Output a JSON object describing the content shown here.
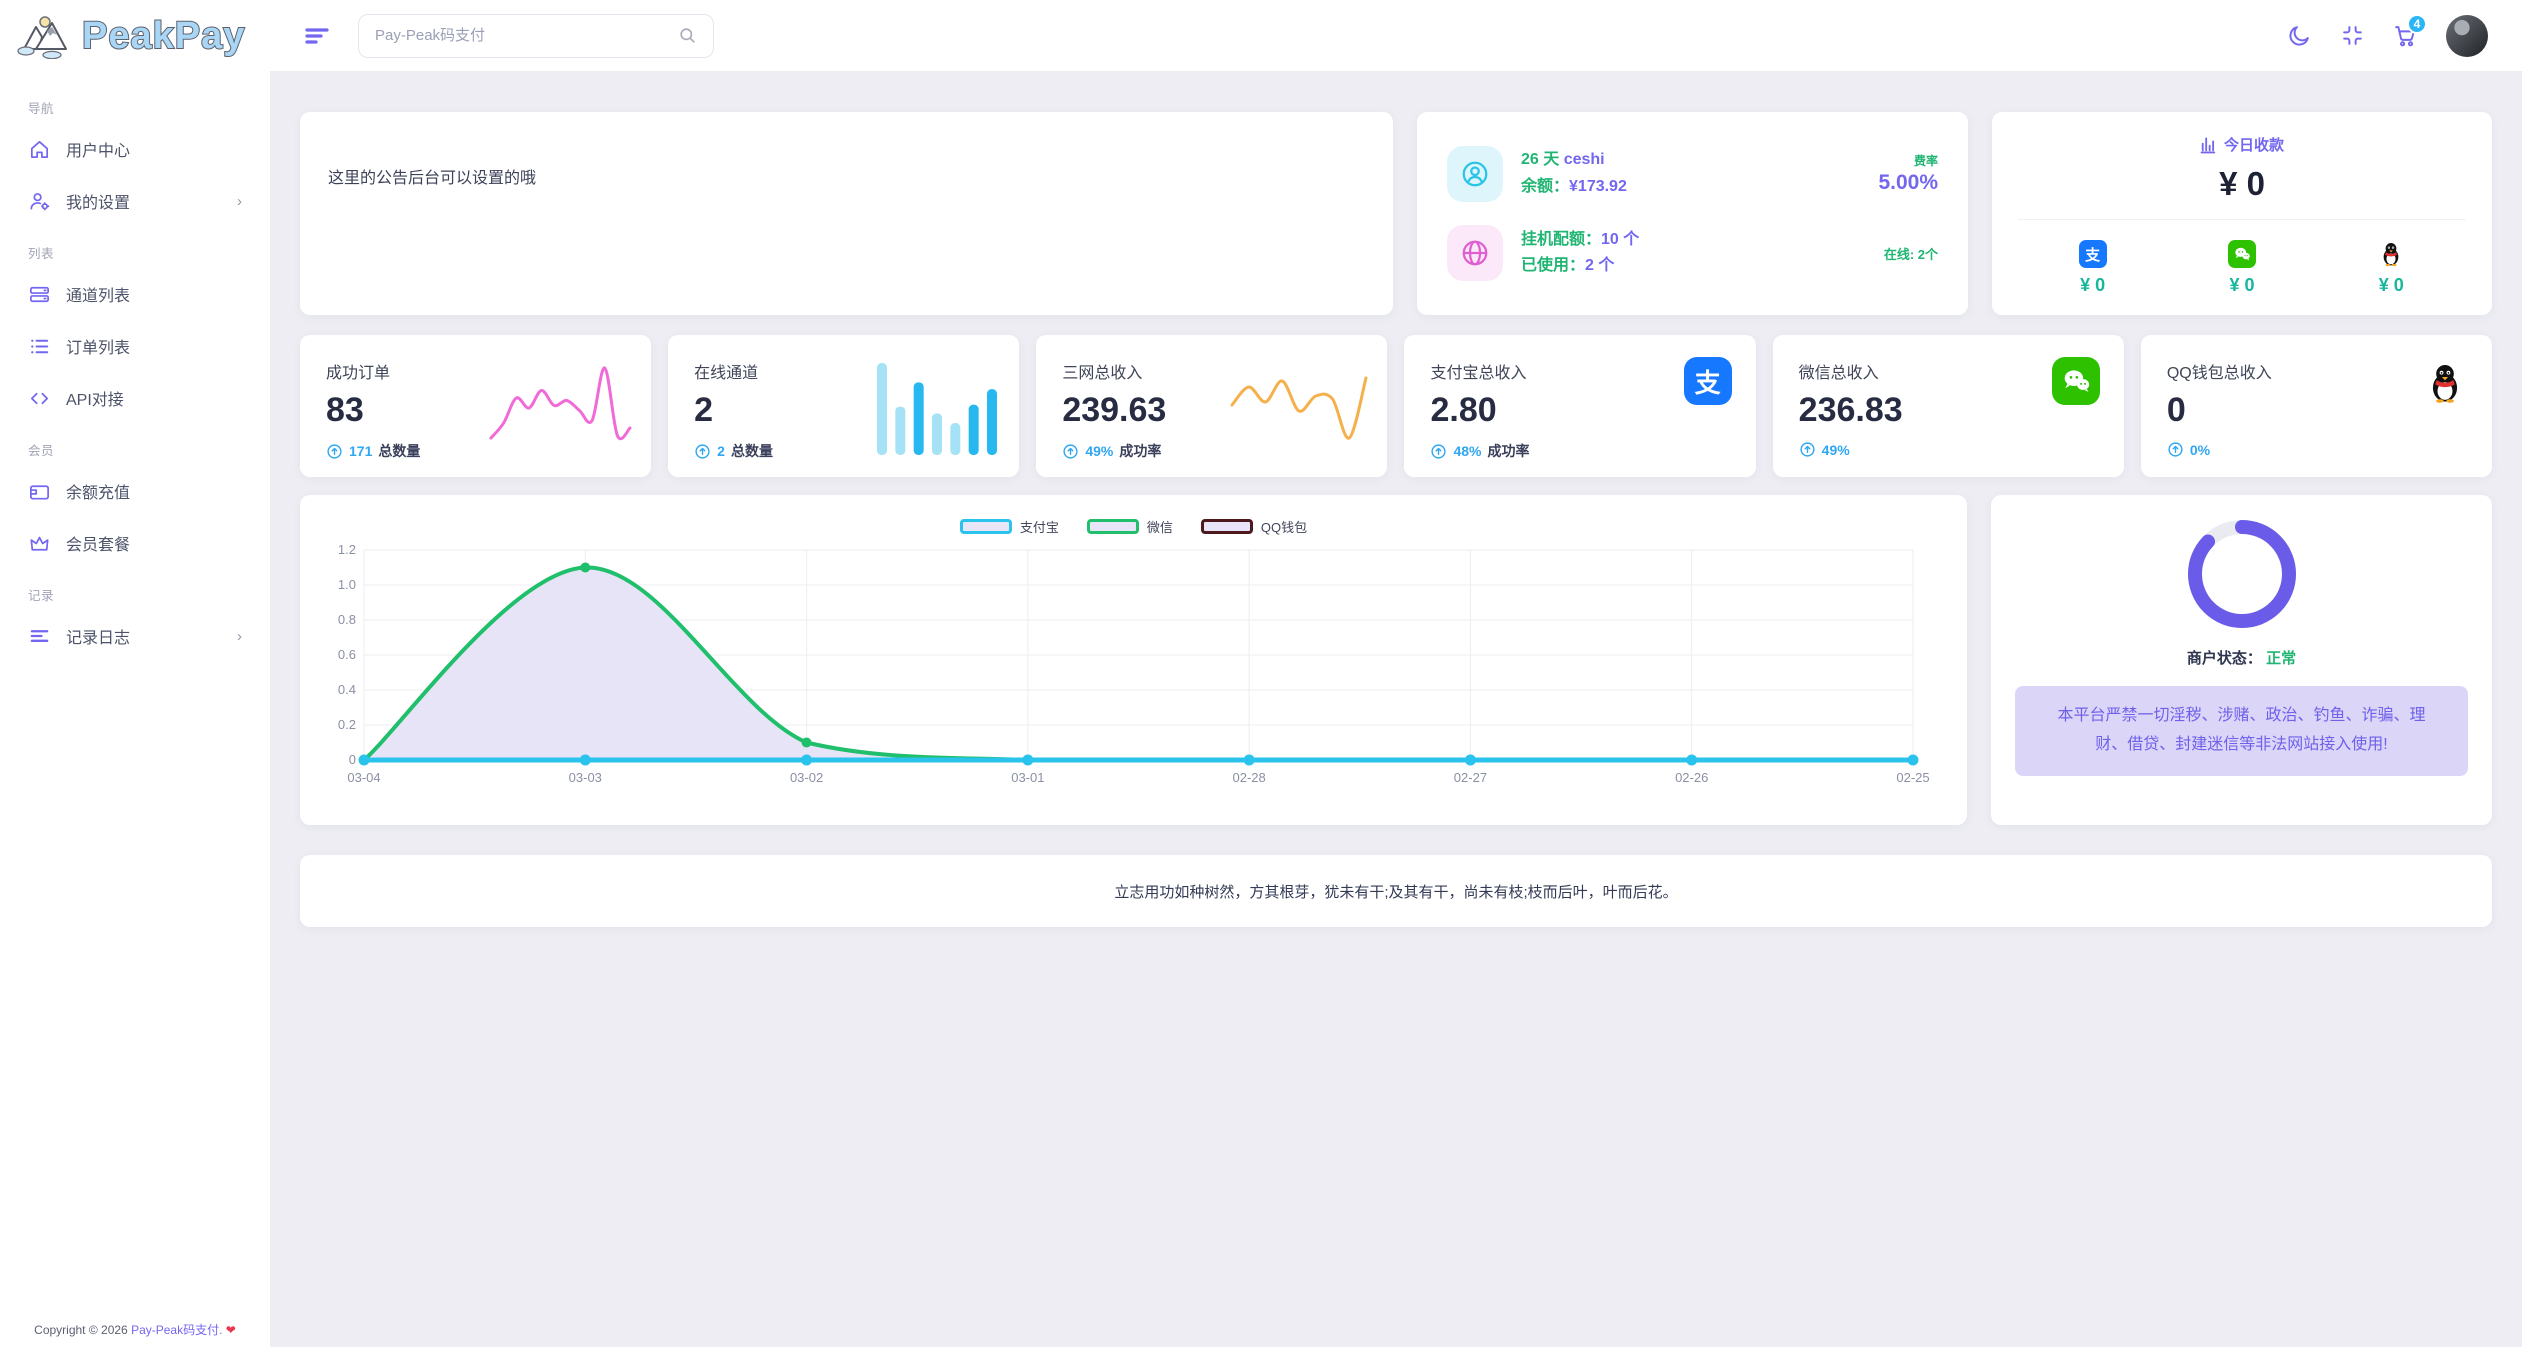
{
  "brand": {
    "name": "PeakPay"
  },
  "topbar": {
    "search_placeholder": "Pay-Peak码支付",
    "cart_badge": "4"
  },
  "sidebar": {
    "sections": [
      {
        "label": "导航",
        "items": [
          {
            "label": "用户中心"
          },
          {
            "label": "我的设置"
          }
        ]
      },
      {
        "label": "列表",
        "items": [
          {
            "label": "通道列表"
          },
          {
            "label": "订单列表"
          },
          {
            "label": "API对接"
          }
        ]
      },
      {
        "label": "会员",
        "items": [
          {
            "label": "余额充值"
          },
          {
            "label": "会员套餐"
          }
        ]
      },
      {
        "label": "记录",
        "items": [
          {
            "label": "记录日志"
          }
        ]
      }
    ],
    "chevron": "›",
    "footer": {
      "copyright": "Copyright © 2026 ",
      "brand": "Pay-Peak码支付.",
      "heart": "❤"
    }
  },
  "announcement": {
    "text": "这里的公告后台可以设置的哦"
  },
  "account": {
    "days": "26 天",
    "name": "ceshi",
    "balance_label": "余额：",
    "balance_value": "¥173.92",
    "rate_label": "费率",
    "rate_value": "5.00%",
    "quota_label": "挂机配额：",
    "quota_value": "10 个",
    "used_label": "已使用：",
    "used_value": "2 个",
    "online": "在线: 2个"
  },
  "today": {
    "title": "今日收款",
    "total": "¥ 0",
    "items": [
      {
        "channel": "alipay",
        "value": "¥ 0"
      },
      {
        "channel": "wechat",
        "value": "¥ 0"
      },
      {
        "channel": "qq",
        "value": "¥ 0"
      }
    ]
  },
  "stats": {
    "cards": [
      {
        "title": "成功订单",
        "value": "83",
        "sub_value": "171",
        "sub_label": "总数量",
        "spark": {
          "type": "line",
          "color": "#f06ad8",
          "values": [
            1.0,
            2.2,
            4.2,
            3.4,
            4.8,
            3.6,
            4.0,
            3.2,
            2.4,
            6.6,
            1.2,
            1.8
          ]
        }
      },
      {
        "title": "在线通道",
        "value": "2",
        "sub_value": "2",
        "sub_label": "总数量",
        "spark": {
          "type": "bar",
          "values": [
            9.5,
            5,
            7.5,
            4.3,
            3.3,
            5.2,
            6.8
          ],
          "colors": [
            "#a5e2f6",
            "#a5e2f6",
            "#26b8ef",
            "#a5e2f6",
            "#a5e2f6",
            "#26b8ef",
            "#26b8ef"
          ]
        }
      },
      {
        "title": "三网总收入",
        "value": "239.63",
        "sub_value": "49%",
        "sub_label": "成功率",
        "spark": {
          "type": "line",
          "color": "#f5b04c",
          "values": [
            3.0,
            4.2,
            3.2,
            4.6,
            2.6,
            3.6,
            3.4,
            0.8,
            4.8
          ]
        }
      },
      {
        "title": "支付宝总收入",
        "value": "2.80",
        "sub_value": "48%",
        "sub_label": "成功率",
        "icon": "alipay"
      },
      {
        "title": "微信总收入",
        "value": "236.83",
        "sub_value": "49%",
        "sub_label": "",
        "icon": "wechat"
      },
      {
        "title": "QQ钱包总收入",
        "value": "0",
        "sub_value": "0%",
        "sub_label": "",
        "icon": "qq"
      }
    ]
  },
  "chart_data": {
    "type": "line",
    "x": [
      "03-04",
      "03-03",
      "03-02",
      "03-01",
      "02-28",
      "02-27",
      "02-26",
      "02-25"
    ],
    "ylim": [
      0,
      1.2
    ],
    "yticks": [
      0,
      0.2,
      0.4,
      0.6,
      0.8,
      1.0,
      1.2
    ],
    "grid": true,
    "legend_position": "top-center",
    "series": [
      {
        "name": "支付宝",
        "color": "#29c3ec",
        "values": [
          0,
          0,
          0,
          0,
          0,
          0,
          0,
          0
        ]
      },
      {
        "name": "微信",
        "color": "#20bf6b",
        "fill": "#e8e4f8",
        "values": [
          0,
          1.1,
          0.1,
          0,
          0,
          0,
          0,
          0
        ]
      },
      {
        "name": "QQ钱包",
        "color": "#4d191d",
        "values": [
          0,
          0,
          0,
          0,
          0,
          0,
          0,
          0
        ]
      }
    ]
  },
  "merchant": {
    "status_label": "商户状态：",
    "status_value": "正常",
    "donut": {
      "percent": 87,
      "color": "#6a5ce8",
      "track": "#e9ebf1"
    },
    "warning": "本平台严禁一切淫秽、涉赌、政治、钓鱼、诈骗、理财、借贷、封建迷信等非法网站接入使用!"
  },
  "quote": {
    "text": "立志用功如种树然，方其根芽，犹未有干;及其有干，尚未有枝;枝而后叶，叶而后花。"
  }
}
